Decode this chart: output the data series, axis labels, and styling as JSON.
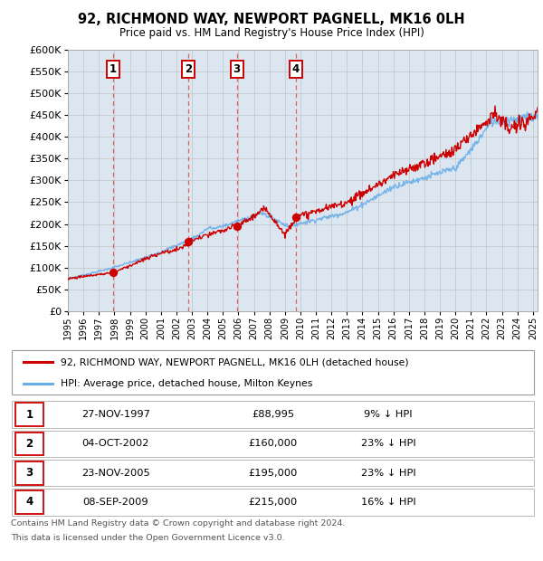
{
  "title": "92, RICHMOND WAY, NEWPORT PAGNELL, MK16 0LH",
  "subtitle": "Price paid vs. HM Land Registry's House Price Index (HPI)",
  "legend_line1": "92, RICHMOND WAY, NEWPORT PAGNELL, MK16 0LH (detached house)",
  "legend_line2": "HPI: Average price, detached house, Milton Keynes",
  "footer1": "Contains HM Land Registry data © Crown copyright and database right 2024.",
  "footer2": "This data is licensed under the Open Government Licence v3.0.",
  "transactions": [
    {
      "num": 1,
      "date": "27-NOV-1997",
      "price": 88995,
      "year": 1997.92,
      "pct": "9% ↓ HPI"
    },
    {
      "num": 2,
      "date": "04-OCT-2002",
      "price": 160000,
      "year": 2002.75,
      "pct": "23% ↓ HPI"
    },
    {
      "num": 3,
      "date": "23-NOV-2005",
      "price": 195000,
      "year": 2005.9,
      "pct": "23% ↓ HPI"
    },
    {
      "num": 4,
      "date": "08-SEP-2009",
      "price": 215000,
      "year": 2009.69,
      "pct": "16% ↓ HPI"
    }
  ],
  "hpi_color": "#6aaee8",
  "price_color": "#cc0000",
  "vline_color": "#e06060",
  "bg_color": "#dce6f1",
  "grid_color": "#bbbbbb",
  "ylim": [
    0,
    600000
  ],
  "xlim_start": 1995,
  "xlim_end": 2025.3,
  "table_rows": [
    [
      "1",
      "27-NOV-1997",
      "£88,995",
      "9% ↓ HPI"
    ],
    [
      "2",
      "04-OCT-2002",
      "£160,000",
      "23% ↓ HPI"
    ],
    [
      "3",
      "23-NOV-2005",
      "£195,000",
      "23% ↓ HPI"
    ],
    [
      "4",
      "08-SEP-2009",
      "£215,000",
      "16% ↓ HPI"
    ]
  ]
}
